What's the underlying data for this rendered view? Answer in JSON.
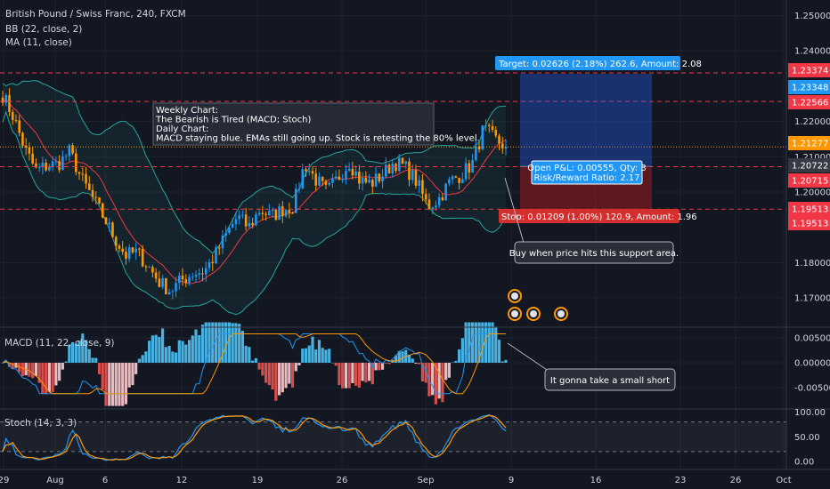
{
  "header": {
    "symbol_line": "British Pound / Swiss Franc, 240, FXCM",
    "bb_line": "BB (22, close, 2)",
    "ma_line": "MA (11, close)"
  },
  "note": {
    "lines": [
      "Weekly Chart:",
      "The Bearish is Tired (MACD; Stoch)",
      "Daily Chart:",
      "MACD staying blue. EMAs still going up. Stock is retesting the 80% level."
    ]
  },
  "position": {
    "target_label": "Target: 0.02626 (2.18%) 262.6, Amount: 2.08",
    "stop_label": "Stop: 0.01209 (1.00%) 120.9, Amount: 1.96",
    "pnl_label": "Open P&L: 0.00555, Qty: 3",
    "rr_label": "Risk/Reward Ratio: 2.17",
    "target_price": 1.23348,
    "entry_price": 1.20722,
    "stop_price": 1.19513
  },
  "callouts": {
    "buy": "Buy when price hits this support area.",
    "short": "It gonna take a small short"
  },
  "macd_panel": {
    "title": "MACD (11, 22, close, 9)"
  },
  "stoch_panel": {
    "title": "Stoch (14, 3, 3)"
  },
  "price_tags": [
    {
      "text": "1.23374",
      "color": "#f23645",
      "value": 1.23374
    },
    {
      "text": "1.23348",
      "color": "#2196f3",
      "value": 1.23348
    },
    {
      "text": "1.22566",
      "color": "#f23645",
      "value": 1.22566
    },
    {
      "text": "1.21277",
      "color": "#ff9800",
      "value": 1.21277
    },
    {
      "text": "1.20722",
      "color": "#363a45",
      "value": 1.20722
    },
    {
      "text": "1.20715",
      "color": "#f23645",
      "value": 1.20715
    },
    {
      "text": "1.19513",
      "color": "#f23645",
      "value": 1.19513
    },
    {
      "text": "1.19513",
      "color": "#f23645",
      "value": 1.19513
    }
  ],
  "colors": {
    "up": "#2196f3",
    "down": "#ff9800",
    "bb": "#26a69a",
    "ma": "#f23645",
    "macd": "#2196f3",
    "signal": "#ff9800",
    "stoch_k": "#2196f3",
    "stoch_d": "#ff9800"
  },
  "chart_data": {
    "type": "candlestick",
    "x_ticks": [
      "29",
      "Aug",
      "6",
      "12",
      "19",
      "26",
      "Sep",
      "9",
      "16",
      "23",
      "26",
      "Oct"
    ],
    "price_axis": {
      "ticks": [
        "1.25000",
        "1.24000",
        "1.22000",
        "1.21000",
        "1.20000",
        "1.18000",
        "1.17000"
      ],
      "ylim": [
        1.163,
        1.2535
      ]
    },
    "macd_axis": {
      "ticks": [
        "0.00500",
        "0.00000",
        "-0.00500"
      ],
      "ylim": [
        -0.0068,
        0.0062
      ]
    },
    "stoch_axis": {
      "ticks": [
        "100.00",
        "50.00",
        "0.00"
      ],
      "ylim": [
        -5,
        105
      ],
      "levels": [
        80,
        20
      ]
    },
    "dashed_levels": [
      1.23374,
      1.22566,
      1.20715,
      1.19513
    ],
    "last_price": 1.21277,
    "price_path": [
      1.2275,
      1.221,
      1.212,
      1.206,
      1.2075,
      1.208,
      1.2115,
      1.204,
      1.1985,
      1.193,
      1.187,
      1.182,
      1.183,
      1.179,
      1.1745,
      1.172,
      1.175,
      1.177,
      1.1775,
      1.182,
      1.188,
      1.193,
      1.19,
      1.195,
      1.193,
      1.195,
      1.196,
      1.208,
      1.2035,
      1.2,
      1.204,
      1.2085,
      1.203,
      1.2025,
      1.205,
      1.2085,
      1.207,
      1.203,
      1.196,
      1.198,
      1.203,
      1.205,
      1.208,
      1.218,
      1.215,
      1.2128
    ]
  }
}
